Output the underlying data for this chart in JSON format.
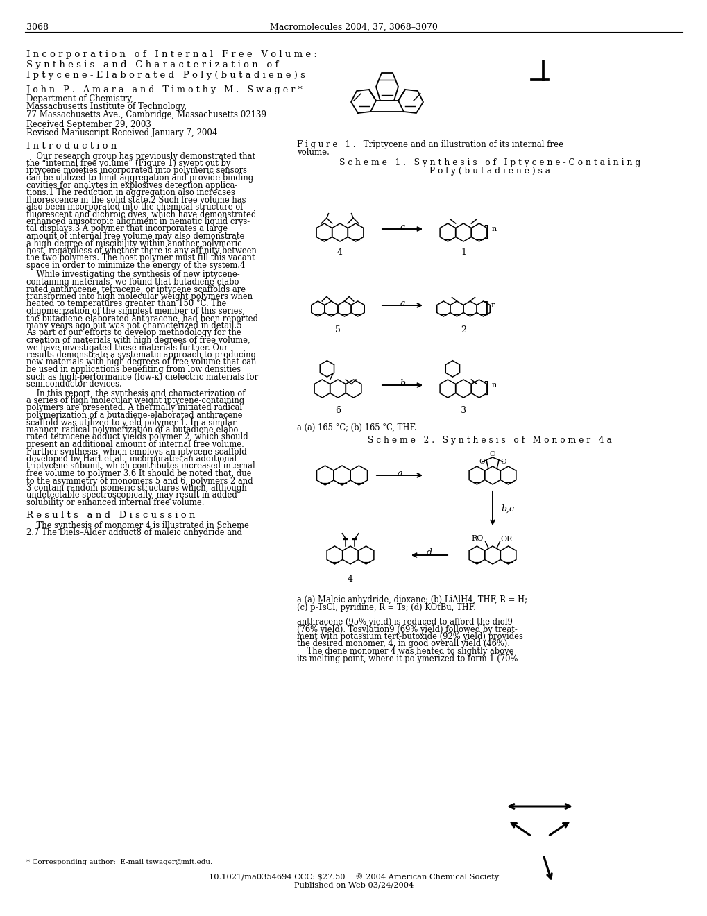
{
  "page_number": "3068",
  "journal_header": "Macromolecules 2004, 37, 3068–3070",
  "title_lines": [
    "I n c o r p o r a t i o n   o f   I n t e r n a l   F r e e   V o l u m e :",
    "S y n t h e s i s   a n d   C h a r a c t e r i z a t i o n   o f",
    "I p t y c e n e - E l a b o r a t e d   P o l y ( b u t a d i e n e ) s"
  ],
  "authors": "J o h n   P .   A m a r a   a n d   T i m o t h y   M .   S w a g e r *",
  "affiliation_lines": [
    "Department of Chemistry,",
    "Massachusetts Institute of Technology,",
    "77 Massachusetts Ave., Cambridge, Massachusetts 02139"
  ],
  "received_lines": [
    "Received September 29, 2003",
    "Revised Manuscript Received January 7, 2004"
  ],
  "section_introduction": "I n t r o d u c t i o n",
  "section_results": "R e s u l t s   a n d   D i s c u s s i o n",
  "footnote": "* Corresponding author:  E-mail tswager@mit.edu.",
  "bottom_text1": "10.1021/ma0354694 CCC: $27.50    © 2004 American Chemical Society",
  "bottom_text2": "Published on Web 03/24/2004",
  "figure1_caption_line1": "F i g u r e   1 .   Triptycene and an illustration of its internal free",
  "figure1_caption_line2": "volume.",
  "scheme1_header1": "S c h e m e   1 .   S y n t h e s i s   o f   I p t y c e n e - C o n t a i n i n g",
  "scheme1_header2": "P o l y ( b u t a d i e n e ) s a",
  "scheme1_footnote": "a (a) 165 °C; (b) 165 °C, THF.",
  "scheme2_header": "S c h e m e   2 .   S y n t h e s i s   o f   M o n o m e r   4 a",
  "scheme2_footnote_line1": "a (a) Maleic anhydride, dioxane; (b) LiAlH4, THF, R = H;",
  "scheme2_footnote_line2": "(c) p-TsCl, pyridine, R = Ts; (d) KOtBu, THF.",
  "rc_bottom_lines": [
    "anthracene (95% yield) is reduced to afford the diol9",
    "(76% yield). Tosylation9 (69% yield) followed by treat-",
    "ment with potassium tert-butoxide (92% yield) provides",
    "the desired monomer, 4, in good overall yield (46%).",
    "    The diene monomer 4 was heated to slightly above",
    "its melting point, where it polymerized to form 1 (70%"
  ],
  "bg_color": "#ffffff",
  "lc_intro_lines": [
    "    Our research group has previously demonstrated that",
    "the “internal free volume” (Figure 1) swept out by",
    "iptycene moieties incorporated into polymeric sensors",
    "can be utilized to limit aggregation and provide binding",
    "cavities for analytes in explosives detection applica-",
    "tions.1 The reduction in aggregation also increases",
    "fluorescence in the solid state.2 Such free volume has",
    "also been incorporated into the chemical structure of",
    "fluorescent and dichroic dyes, which have demonstrated",
    "enhanced anisotropic alignment in nematic liquid crys-",
    "tal displays.3 A polymer that incorporates a large",
    "amount of internal free volume may also demonstrate",
    "a high degree of miscibility within another polymeric",
    "host, regardless of whether there is any affinity between",
    "the two polymers. The host polymer must fill this vacant",
    "space in order to minimize the energy of the system.4"
  ],
  "lc_intro_lines2": [
    "    While investigating the synthesis of new iptycene-",
    "containing materials, we found that butadiene-elabo-",
    "rated anthracene, tetracene, or iptycene scaffolds are",
    "transformed into high molecular weight polymers when",
    "heated to temperatures greater than 150 °C. The",
    "oligomerization of the simplest member of this series,",
    "the butadiene-elaborated anthracene, had been reported",
    "many years ago but was not characterized in detail.5",
    "As part of our efforts to develop methodology for the",
    "creation of materials with high degrees of free volume,",
    "we have investigated these materials further. Our",
    "results demonstrate a systematic approach to producing",
    "new materials with high degrees of free volume that can",
    "be used in applications benefiting from low densities",
    "such as high-performance (low-κ) dielectric materials for",
    "semiconductor devices."
  ],
  "lc_intro_lines3": [
    "    In this report, the synthesis and characterization of",
    "a series of high molecular weight iptycene-containing",
    "polymers are presented. A thermally initiated radical",
    "polymerization of a butadiene-elaborated anthracene",
    "scaffold was utilized to yield polymer 1. In a similar",
    "manner, radical polymerization of a butadiene-elabo-",
    "rated tetracene adduct yields polymer 2, which should",
    "present an additional amount of internal free volume.",
    "Further synthesis, which employs an iptycene scaffold",
    "developed by Hart et al., incorporates an additional",
    "triptycene subunit, which contributes increased internal",
    "free volume to polymer 3.6 It should be noted that, due",
    "to the asymmetry of monomers 5 and 6, polymers 2 and",
    "3 contain random isomeric structures which, although",
    "undetectable spectroscopically, may result in added",
    "solubility or enhanced internal free volume."
  ],
  "lc_results_lines": [
    "    The synthesis of monomer 4 is illustrated in Scheme",
    "2.7 The Diels–Alder adduct8 of maleic anhydride and"
  ]
}
